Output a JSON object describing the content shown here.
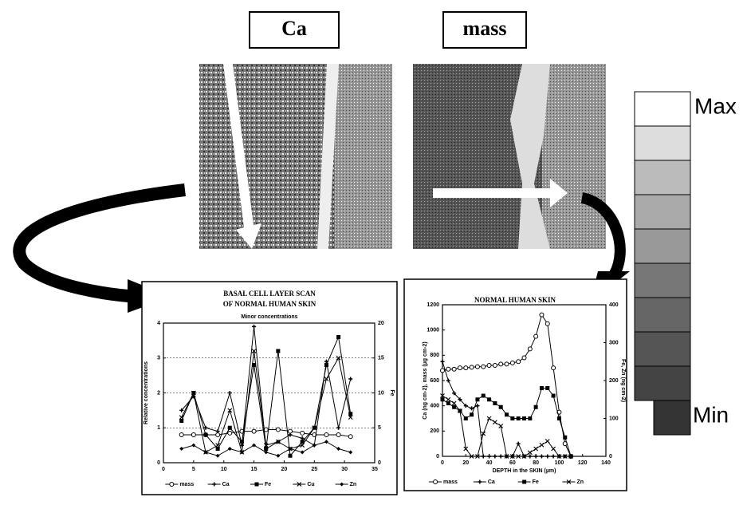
{
  "panels": [
    {
      "label": "Ca"
    },
    {
      "label": "mass"
    }
  ],
  "scale": {
    "max": "Max",
    "min": "Min"
  },
  "chart_data": [
    {
      "type": "line",
      "title": [
        "BASAL CELL LAYER SCAN",
        "OF NORMAL HUMAN SKIN"
      ],
      "subtitle": "Minor concentrations",
      "y_label": "Relative concentrations",
      "y2_label": "Fe",
      "grid": true,
      "x": [
        3,
        5,
        7,
        9,
        11,
        13,
        15,
        17,
        19,
        21,
        23,
        25,
        27,
        29,
        31
      ],
      "xlim": [
        0,
        35
      ],
      "xticks": [
        0,
        5,
        10,
        15,
        20,
        25,
        30,
        35
      ],
      "ylim": [
        0,
        4
      ],
      "yticks": [
        0,
        1,
        2,
        3,
        4
      ],
      "y2lim": [
        0,
        20
      ],
      "y2ticks": [
        0,
        5,
        10,
        15,
        20
      ],
      "series": [
        {
          "name": "mass",
          "color": "#000",
          "values": [
            0.8,
            0.8,
            0.8,
            0.8,
            0.85,
            0.9,
            0.9,
            0.95,
            0.95,
            0.9,
            0.85,
            0.8,
            0.8,
            0.8,
            0.75
          ]
        },
        {
          "name": "Ca",
          "color": "#000",
          "values": [
            1.5,
            1.9,
            1.0,
            0.9,
            2.0,
            0.5,
            3.9,
            0.4,
            0.6,
            0.8,
            0.7,
            0.5,
            2.9,
            1.0,
            2.4
          ]
        },
        {
          "name": "Fe",
          "color": "#000",
          "axis": "y2",
          "values": [
            6,
            10,
            4,
            2,
            5,
            3,
            14,
            2,
            16,
            1,
            3,
            5,
            14,
            18,
            7
          ]
        },
        {
          "name": "Cu",
          "color": "#000",
          "values": [
            1.3,
            2.0,
            0.3,
            0.5,
            1.5,
            0.3,
            3.2,
            0.5,
            0.6,
            0.4,
            0.5,
            1.0,
            2.4,
            3.0,
            1.3
          ]
        },
        {
          "name": "Zn",
          "color": "#000",
          "values": [
            0.4,
            0.5,
            0.3,
            0.2,
            0.4,
            0.3,
            0.5,
            0.3,
            0.2,
            0.4,
            0.3,
            0.5,
            0.6,
            0.4,
            0.3
          ]
        }
      ]
    },
    {
      "type": "line",
      "title": [
        "NORMAL HUMAN SKIN"
      ],
      "y_label": "Ca (ng cm-2), mass (µg cm-2)",
      "y2_label": "Fe, Zn (ng cm-2)",
      "x_label": "DEPTH in the SKIN (µm)",
      "grid": false,
      "x": [
        0,
        5,
        10,
        15,
        20,
        25,
        30,
        35,
        40,
        45,
        50,
        55,
        60,
        65,
        70,
        75,
        80,
        85,
        90,
        95,
        100,
        105,
        110
      ],
      "xlim": [
        0,
        140
      ],
      "xticks": [
        0,
        20,
        40,
        60,
        80,
        100,
        120,
        140
      ],
      "ylim": [
        0,
        1200
      ],
      "yticks": [
        0,
        200,
        400,
        600,
        800,
        1000,
        1200
      ],
      "y2lim": [
        0,
        400
      ],
      "y2ticks": [
        0,
        100,
        200,
        300,
        400
      ],
      "series": [
        {
          "name": "mass",
          "color": "#000",
          "values": [
            680,
            690,
            690,
            700,
            700,
            705,
            710,
            710,
            720,
            720,
            730,
            730,
            740,
            750,
            780,
            850,
            950,
            1120,
            1050,
            700,
            350,
            100,
            0
          ]
        },
        {
          "name": "Ca",
          "color": "#000",
          "values": [
            750,
            600,
            500,
            450,
            400,
            380,
            400,
            0,
            0,
            0,
            0,
            0,
            0,
            100,
            0,
            0,
            0,
            0,
            0,
            0,
            0,
            0,
            0
          ]
        },
        {
          "name": "Fe",
          "color": "#000",
          "axis": "y2",
          "values": [
            150,
            140,
            130,
            120,
            100,
            110,
            150,
            160,
            150,
            140,
            130,
            110,
            100,
            100,
            100,
            100,
            130,
            180,
            180,
            160,
            100,
            50,
            0
          ]
        },
        {
          "name": "Zn",
          "color": "#000",
          "axis": "y2",
          "values": [
            160,
            150,
            140,
            120,
            20,
            0,
            0,
            60,
            100,
            90,
            80,
            0,
            0,
            0,
            0,
            10,
            20,
            30,
            40,
            20,
            0,
            0,
            0
          ]
        }
      ]
    }
  ]
}
